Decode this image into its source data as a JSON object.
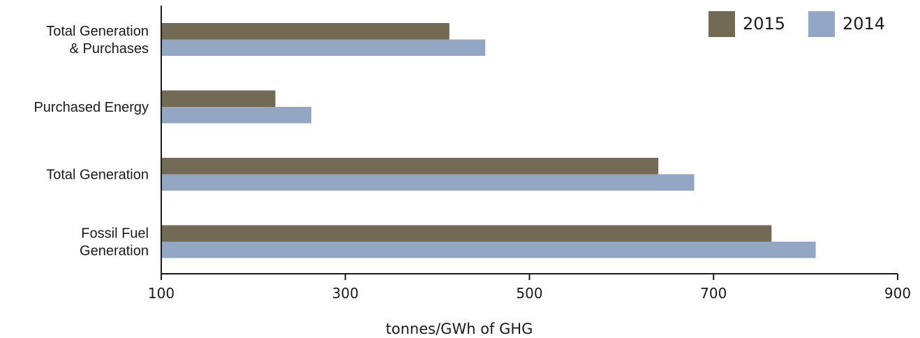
{
  "chart_data": {
    "type": "bar",
    "orientation": "horizontal",
    "categories": [
      [
        "Total Generation",
        "& Purchases"
      ],
      [
        "Purchased Energy"
      ],
      [
        "Total Generation"
      ],
      [
        "Fossil Fuel",
        "Generation"
      ]
    ],
    "series": [
      {
        "name": "2015",
        "color": "#736a55",
        "values": [
          413,
          224,
          640,
          763
        ]
      },
      {
        "name": "2014",
        "color": "#93a7c4",
        "values": [
          452,
          263,
          679,
          811
        ]
      }
    ],
    "xlabel": "tonnes/GWh of GHG",
    "ylabel": "",
    "xlim": [
      100,
      900
    ],
    "xticks": [
      100,
      300,
      500,
      700,
      900
    ],
    "grid": false,
    "legend": "top-right"
  }
}
